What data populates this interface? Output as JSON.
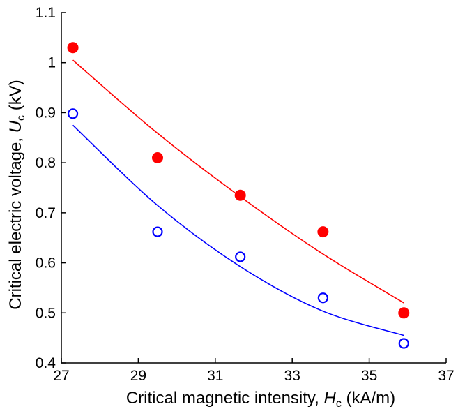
{
  "chart_data": {
    "type": "scatter",
    "xlabel_main": "Critical magnetic intensity, ",
    "xlabel_sym": "H",
    "xlabel_sub": "c",
    "xlabel_unit": " (kA/m)",
    "ylabel_main": "Critical electric voltage, ",
    "ylabel_sym": "U",
    "ylabel_sub": "c",
    "ylabel_unit": " (kV)",
    "xlim": [
      27,
      37
    ],
    "ylim": [
      0.4,
      1.1
    ],
    "x_ticks": [
      "27",
      "29",
      "31",
      "33",
      "35",
      "37"
    ],
    "y_ticks": [
      "0.4",
      "0.5",
      "0.6",
      "0.7",
      "0.8",
      "0.9",
      "1",
      "1.1"
    ],
    "grid": false,
    "series": [
      {
        "marker": "filled-circle",
        "color": "#ff0000",
        "x": [
          27.3,
          29.5,
          31.65,
          33.8,
          35.9
        ],
        "y": [
          1.03,
          0.81,
          0.735,
          0.662,
          0.5
        ],
        "fit_x": [
          27.3,
          35.9
        ],
        "fit": [
          1.005,
          0.862,
          0.735,
          0.62,
          0.52
        ]
      },
      {
        "marker": "open-circle",
        "color": "#0000ff",
        "x": [
          27.3,
          29.5,
          31.65,
          33.8,
          35.9
        ],
        "y": [
          0.898,
          0.662,
          0.612,
          0.53,
          0.439
        ],
        "fit_x": [
          27.3,
          35.9
        ],
        "fit": [
          0.875,
          0.718,
          0.595,
          0.505,
          0.455
        ]
      }
    ]
  }
}
